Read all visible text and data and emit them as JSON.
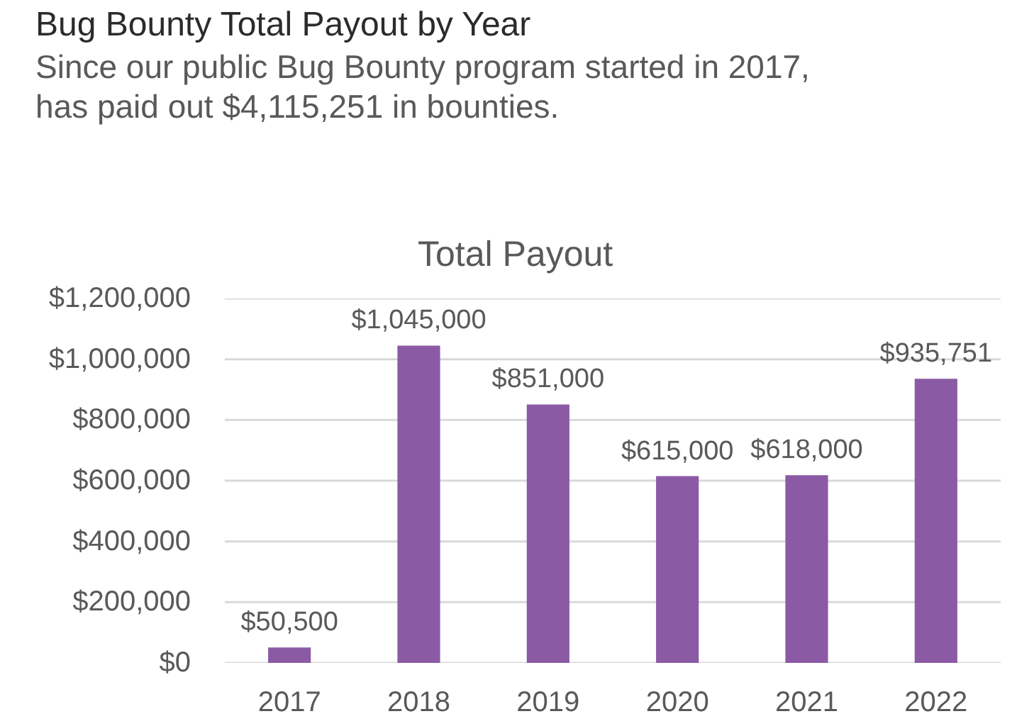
{
  "chart_data": {
    "type": "bar",
    "title": "Bug Bounty Total Payout by Year",
    "subtitle": "Since our public Bug Bounty program started in 2017, has paid out $4,115,251 in bounties.",
    "annotations": [
      "Total Payout"
    ],
    "categories": [
      "2017",
      "2018",
      "2019",
      "2020",
      "2021",
      "2022"
    ],
    "values": [
      50500,
      1045000,
      851000,
      615000,
      618000,
      935751
    ],
    "value_labels": [
      "$50,500",
      "$1,045,000",
      "$851,000",
      "$615,000",
      "$618,000",
      "$935,751"
    ],
    "color": "#8b5aa5",
    "ylim": [
      0,
      1200000
    ],
    "yticks": [
      {
        "value": 0,
        "label": "$0"
      },
      {
        "value": 200000,
        "label": "$200,000"
      },
      {
        "value": 400000,
        "label": "$400,000"
      },
      {
        "value": 600000,
        "label": "$600,000"
      },
      {
        "value": 800000,
        "label": "$800,000"
      },
      {
        "value": 1000000,
        "label": "$1,000,000"
      },
      {
        "value": 1200000,
        "label": "$1,200,000"
      }
    ],
    "grid": "y"
  }
}
